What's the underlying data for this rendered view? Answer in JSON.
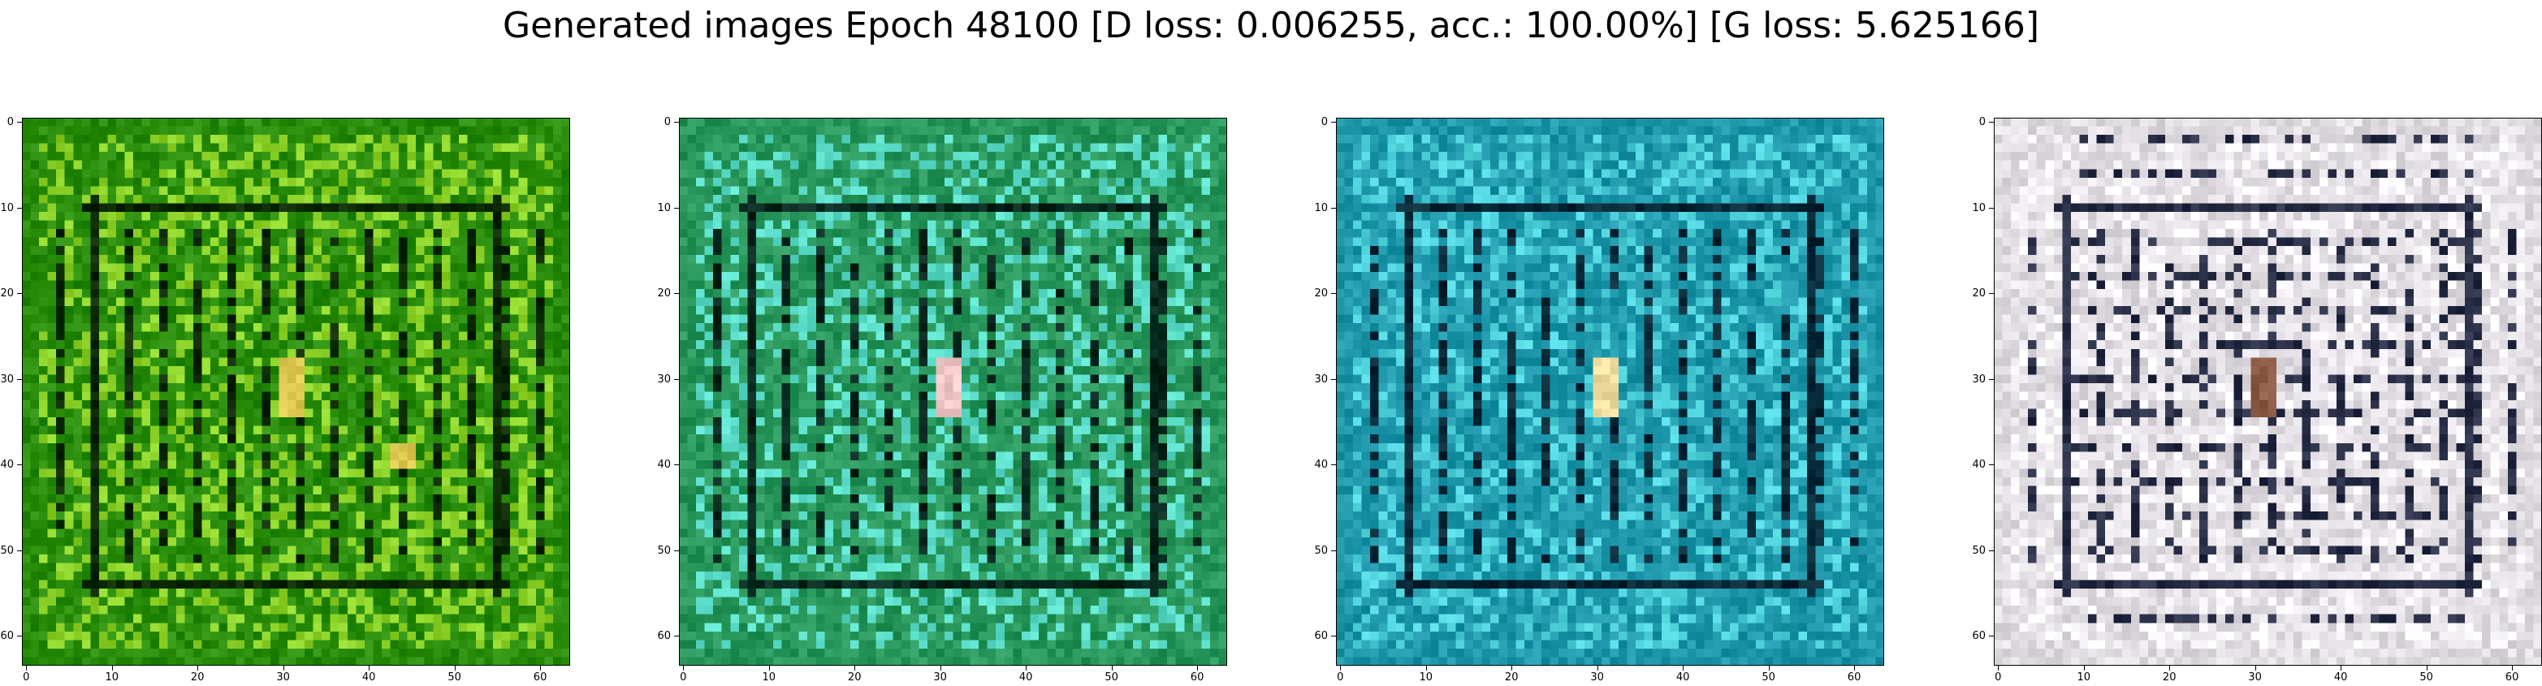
{
  "figure": {
    "title": "Generated images Epoch 48100 [D loss: 0.006255, acc.: 100.00%] [G loss: 5.625166]"
  },
  "panels": [
    {
      "name": "sample-1",
      "palette": "green"
    },
    {
      "name": "sample-2",
      "palette": "teal-green"
    },
    {
      "name": "sample-3",
      "palette": "cyan"
    },
    {
      "name": "sample-4",
      "palette": "pale"
    }
  ],
  "axis": {
    "x_ticks": [
      "0",
      "10",
      "20",
      "30",
      "40",
      "50",
      "60"
    ],
    "y_ticks": [
      "0",
      "10",
      "20",
      "30",
      "40",
      "50",
      "60"
    ],
    "pixel_extent": 64
  }
}
